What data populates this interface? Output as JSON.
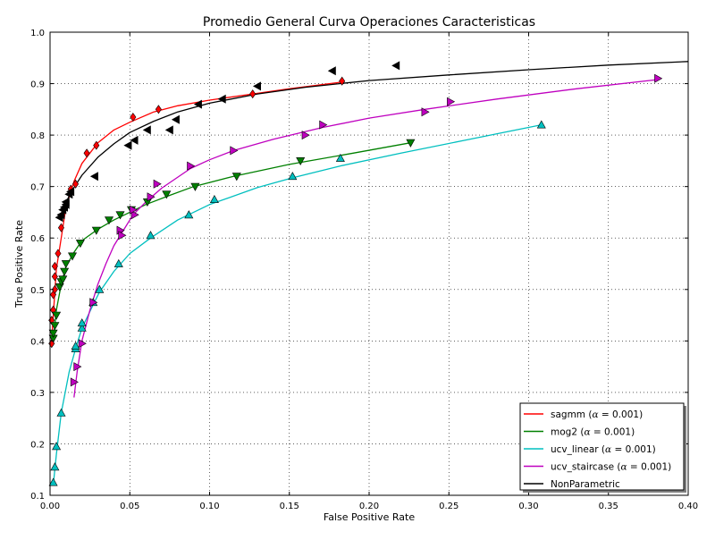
{
  "chart_data": {
    "type": "line",
    "title": "Promedio General Curva Operaciones Caracteristicas",
    "xlabel": "False Positive Rate",
    "ylabel": "True Positive Rate",
    "xlim": [
      0.0,
      0.4
    ],
    "ylim": [
      0.1,
      1.0
    ],
    "xticks": [
      "0.00",
      "0.05",
      "0.10",
      "0.15",
      "0.20",
      "0.25",
      "0.30",
      "0.35",
      "0.40"
    ],
    "yticks": [
      "0.1",
      "0.2",
      "0.3",
      "0.4",
      "0.5",
      "0.6",
      "0.7",
      "0.8",
      "0.9",
      "1.0"
    ],
    "grid": true,
    "legend_position": "lower-right",
    "series": [
      {
        "name_prefix": "sagmm (",
        "name_symbol": "α",
        "name_suffix": " = 0.001)",
        "color": "#ff0000",
        "marker": "diamond",
        "points": [
          [
            0.001,
            0.395
          ],
          [
            0.001,
            0.44
          ],
          [
            0.002,
            0.46
          ],
          [
            0.002,
            0.49
          ],
          [
            0.003,
            0.5
          ],
          [
            0.003,
            0.525
          ],
          [
            0.003,
            0.545
          ],
          [
            0.005,
            0.57
          ],
          [
            0.007,
            0.62
          ],
          [
            0.01,
            0.665
          ],
          [
            0.013,
            0.695
          ],
          [
            0.016,
            0.705
          ],
          [
            0.023,
            0.765
          ],
          [
            0.029,
            0.78
          ],
          [
            0.052,
            0.835
          ],
          [
            0.068,
            0.85
          ],
          [
            0.127,
            0.88
          ],
          [
            0.183,
            0.905
          ]
        ],
        "curve": [
          [
            0.001,
            0.4
          ],
          [
            0.002,
            0.45
          ],
          [
            0.004,
            0.54
          ],
          [
            0.007,
            0.6
          ],
          [
            0.01,
            0.66
          ],
          [
            0.015,
            0.71
          ],
          [
            0.02,
            0.745
          ],
          [
            0.03,
            0.785
          ],
          [
            0.04,
            0.81
          ],
          [
            0.05,
            0.825
          ],
          [
            0.065,
            0.845
          ],
          [
            0.08,
            0.857
          ],
          [
            0.1,
            0.868
          ],
          [
            0.127,
            0.88
          ],
          [
            0.15,
            0.89
          ],
          [
            0.183,
            0.903
          ]
        ]
      },
      {
        "name_prefix": "mog2 (",
        "name_symbol": "α",
        "name_suffix": " = 0.001)",
        "color": "#008000",
        "marker": "triangle-down",
        "points": [
          [
            0.002,
            0.405
          ],
          [
            0.002,
            0.415
          ],
          [
            0.003,
            0.43
          ],
          [
            0.004,
            0.45
          ],
          [
            0.006,
            0.505
          ],
          [
            0.007,
            0.515
          ],
          [
            0.008,
            0.52
          ],
          [
            0.009,
            0.535
          ],
          [
            0.01,
            0.55
          ],
          [
            0.014,
            0.565
          ],
          [
            0.019,
            0.59
          ],
          [
            0.029,
            0.615
          ],
          [
            0.037,
            0.635
          ],
          [
            0.044,
            0.645
          ],
          [
            0.051,
            0.655
          ],
          [
            0.061,
            0.67
          ],
          [
            0.073,
            0.685
          ],
          [
            0.091,
            0.7
          ],
          [
            0.117,
            0.72
          ],
          [
            0.157,
            0.75
          ],
          [
            0.226,
            0.785
          ]
        ],
        "curve": [
          [
            0.002,
            0.4
          ],
          [
            0.004,
            0.46
          ],
          [
            0.007,
            0.51
          ],
          [
            0.01,
            0.545
          ],
          [
            0.015,
            0.572
          ],
          [
            0.02,
            0.595
          ],
          [
            0.03,
            0.617
          ],
          [
            0.04,
            0.635
          ],
          [
            0.05,
            0.65
          ],
          [
            0.06,
            0.665
          ],
          [
            0.075,
            0.683
          ],
          [
            0.09,
            0.7
          ],
          [
            0.115,
            0.72
          ],
          [
            0.15,
            0.743
          ],
          [
            0.19,
            0.765
          ],
          [
            0.226,
            0.785
          ]
        ]
      },
      {
        "name_prefix": "ucv_linear (",
        "name_symbol": "α",
        "name_suffix": " = 0.001)",
        "color": "#00bfbf",
        "marker": "triangle-up",
        "points": [
          [
            0.002,
            0.125
          ],
          [
            0.003,
            0.155
          ],
          [
            0.004,
            0.195
          ],
          [
            0.007,
            0.26
          ],
          [
            0.016,
            0.385
          ],
          [
            0.016,
            0.39
          ],
          [
            0.02,
            0.425
          ],
          [
            0.02,
            0.435
          ],
          [
            0.027,
            0.475
          ],
          [
            0.031,
            0.5
          ],
          [
            0.043,
            0.55
          ],
          [
            0.063,
            0.605
          ],
          [
            0.087,
            0.645
          ],
          [
            0.103,
            0.675
          ],
          [
            0.152,
            0.72
          ],
          [
            0.182,
            0.755
          ],
          [
            0.308,
            0.82
          ]
        ],
        "curve": [
          [
            0.002,
            0.12
          ],
          [
            0.004,
            0.18
          ],
          [
            0.007,
            0.26
          ],
          [
            0.012,
            0.34
          ],
          [
            0.016,
            0.385
          ],
          [
            0.02,
            0.425
          ],
          [
            0.027,
            0.47
          ],
          [
            0.031,
            0.495
          ],
          [
            0.04,
            0.535
          ],
          [
            0.05,
            0.57
          ],
          [
            0.063,
            0.6
          ],
          [
            0.08,
            0.635
          ],
          [
            0.1,
            0.665
          ],
          [
            0.13,
            0.698
          ],
          [
            0.152,
            0.717
          ],
          [
            0.182,
            0.74
          ],
          [
            0.22,
            0.765
          ],
          [
            0.26,
            0.79
          ],
          [
            0.308,
            0.82
          ]
        ]
      },
      {
        "name_prefix": "ucv_staircase (",
        "name_symbol": "α",
        "name_suffix": " = 0.001)",
        "color": "#bf00bf",
        "marker": "triangle-right",
        "points": [
          [
            0.015,
            0.32
          ],
          [
            0.017,
            0.35
          ],
          [
            0.02,
            0.395
          ],
          [
            0.027,
            0.475
          ],
          [
            0.044,
            0.615
          ],
          [
            0.045,
            0.605
          ],
          [
            0.053,
            0.645
          ],
          [
            0.052,
            0.655
          ],
          [
            0.063,
            0.68
          ],
          [
            0.067,
            0.705
          ],
          [
            0.088,
            0.74
          ],
          [
            0.115,
            0.77
          ],
          [
            0.16,
            0.8
          ],
          [
            0.171,
            0.82
          ],
          [
            0.235,
            0.845
          ],
          [
            0.251,
            0.865
          ],
          [
            0.381,
            0.91
          ]
        ],
        "curve": [
          [
            0.015,
            0.29
          ],
          [
            0.017,
            0.34
          ],
          [
            0.02,
            0.4
          ],
          [
            0.025,
            0.46
          ],
          [
            0.03,
            0.51
          ],
          [
            0.035,
            0.55
          ],
          [
            0.04,
            0.585
          ],
          [
            0.045,
            0.61
          ],
          [
            0.052,
            0.645
          ],
          [
            0.06,
            0.67
          ],
          [
            0.07,
            0.697
          ],
          [
            0.088,
            0.735
          ],
          [
            0.1,
            0.752
          ],
          [
            0.115,
            0.77
          ],
          [
            0.14,
            0.792
          ],
          [
            0.171,
            0.815
          ],
          [
            0.2,
            0.833
          ],
          [
            0.235,
            0.85
          ],
          [
            0.28,
            0.87
          ],
          [
            0.33,
            0.89
          ],
          [
            0.381,
            0.908
          ]
        ]
      },
      {
        "name_prefix": "NonParametric",
        "name_symbol": "",
        "name_suffix": "",
        "color": "#000000",
        "marker": "triangle-left",
        "points": [
          [
            0.006,
            0.64
          ],
          [
            0.007,
            0.645
          ],
          [
            0.008,
            0.655
          ],
          [
            0.009,
            0.66
          ],
          [
            0.01,
            0.665
          ],
          [
            0.01,
            0.67
          ],
          [
            0.012,
            0.685
          ],
          [
            0.013,
            0.69
          ],
          [
            0.028,
            0.72
          ],
          [
            0.049,
            0.78
          ],
          [
            0.053,
            0.79
          ],
          [
            0.061,
            0.81
          ],
          [
            0.075,
            0.81
          ],
          [
            0.079,
            0.83
          ],
          [
            0.093,
            0.86
          ],
          [
            0.108,
            0.87
          ],
          [
            0.13,
            0.895
          ],
          [
            0.177,
            0.925
          ],
          [
            0.217,
            0.935
          ]
        ],
        "curve": [
          [
            0.006,
            0.64
          ],
          [
            0.008,
            0.655
          ],
          [
            0.01,
            0.668
          ],
          [
            0.012,
            0.682
          ],
          [
            0.015,
            0.698
          ],
          [
            0.02,
            0.722
          ],
          [
            0.03,
            0.757
          ],
          [
            0.04,
            0.783
          ],
          [
            0.05,
            0.805
          ],
          [
            0.065,
            0.827
          ],
          [
            0.08,
            0.845
          ],
          [
            0.1,
            0.862
          ],
          [
            0.13,
            0.88
          ],
          [
            0.16,
            0.893
          ],
          [
            0.2,
            0.906
          ],
          [
            0.25,
            0.917
          ],
          [
            0.3,
            0.927
          ],
          [
            0.35,
            0.936
          ],
          [
            0.4,
            0.943
          ]
        ]
      }
    ]
  }
}
